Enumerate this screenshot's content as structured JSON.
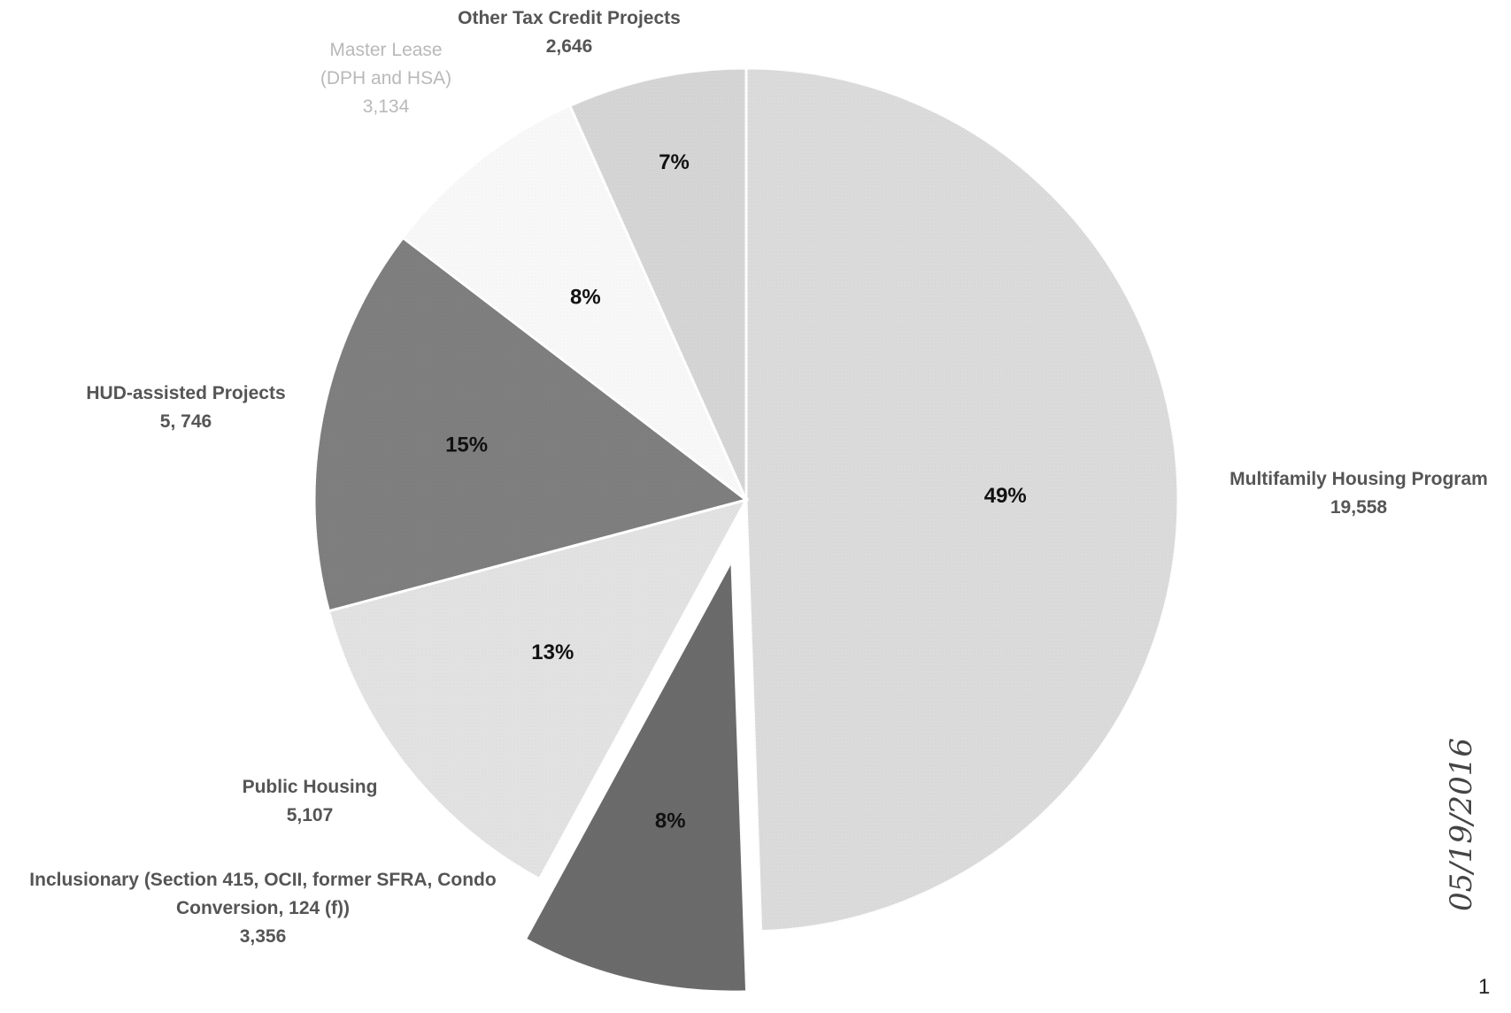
{
  "chart_data": {
    "type": "pie",
    "title": "",
    "slices": [
      {
        "label": "Multifamily Housing Program",
        "value": 19558,
        "percent_label": "49%",
        "value_label": "19,558",
        "color": "#dcdcdc",
        "label_style": "dark"
      },
      {
        "label": "Inclusionary (Section 415, OCII, former SFRA, Condo Conversion, 124 (f))",
        "value": 3356,
        "percent_label": "8%",
        "value_label": "3,356",
        "color": "#6b6b6b",
        "label_style": "dark",
        "exploded": true
      },
      {
        "label": "Public Housing",
        "value": 5107,
        "percent_label": "13%",
        "value_label": "5,107",
        "color": "#e3e3e3",
        "label_style": "dark"
      },
      {
        "label": "HUD-assisted Projects",
        "value": 5746,
        "percent_label": "15%",
        "value_label": "5, 746",
        "color": "#7f7f7f",
        "label_style": "dark"
      },
      {
        "label": "Master Lease (DPH and HSA)",
        "value": 3134,
        "percent_label": "8%",
        "value_label": "3,134",
        "color": "#f9f9f9",
        "label_style": "light"
      },
      {
        "label": "Other Tax Credit Projects",
        "value": 2646,
        "percent_label": "7%",
        "value_label": "2,646",
        "color": "#d6d6d6",
        "label_style": "dark"
      }
    ],
    "legend": "none"
  },
  "annotations": {
    "handwritten_date": "05/19/2016",
    "page_number": "1"
  }
}
